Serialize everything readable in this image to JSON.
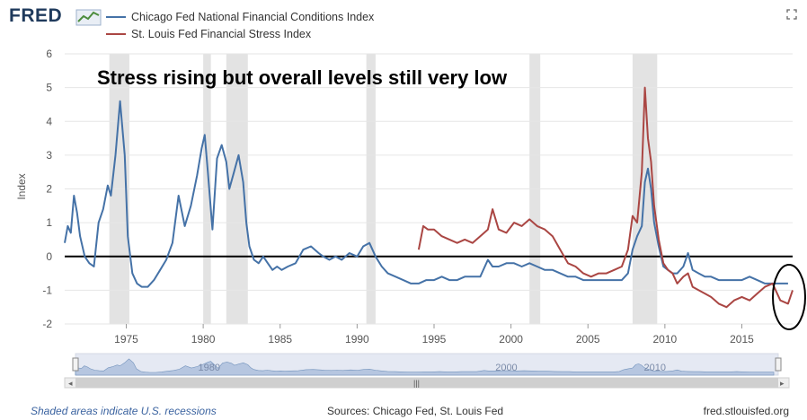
{
  "header": {
    "brand": "FRED",
    "fullscreen_icon": "expand-icon"
  },
  "legend": [
    {
      "label": "Chicago Fed National Financial Conditions Index",
      "color": "#4572a7"
    },
    {
      "label": "St. Louis Fed Financial Stress Index",
      "color": "#aa4643"
    }
  ],
  "annotation": "Stress rising but overall levels still very low",
  "footer": {
    "left": "Shaded areas indicate U.S. recessions",
    "middle": "Sources: Chicago Fed, St. Louis Fed",
    "right": "fred.stlouisfed.org"
  },
  "navigator": {
    "labels": [
      "1980",
      "2000",
      "2010"
    ]
  },
  "chart_data": {
    "type": "line",
    "title": "Stress rising but overall levels still very low",
    "xlabel": "",
    "ylabel": "Index",
    "xlim": [
      1971.0,
      2018.3
    ],
    "ylim": [
      -2,
      6
    ],
    "yticks": [
      -2,
      -1,
      0,
      1,
      2,
      3,
      4,
      5,
      6
    ],
    "xticks": [
      1975,
      1980,
      1985,
      1990,
      1995,
      2000,
      2005,
      2010,
      2015
    ],
    "recessions": [
      [
        1973.9,
        1975.2
      ],
      [
        1980.0,
        1980.5
      ],
      [
        1981.5,
        1982.9
      ],
      [
        1990.6,
        1991.2
      ],
      [
        2001.2,
        2001.9
      ],
      [
        2007.9,
        2009.5
      ]
    ],
    "zero_line": 0,
    "series": [
      {
        "name": "Chicago Fed National Financial Conditions Index",
        "color": "#4572a7",
        "x": [
          1971.0,
          1971.2,
          1971.4,
          1971.6,
          1971.8,
          1972.0,
          1972.3,
          1972.6,
          1972.9,
          1973.2,
          1973.5,
          1973.8,
          1974.0,
          1974.3,
          1974.6,
          1974.9,
          1975.1,
          1975.4,
          1975.7,
          1976.0,
          1976.4,
          1976.8,
          1977.2,
          1977.6,
          1978.0,
          1978.4,
          1978.8,
          1979.2,
          1979.6,
          1979.9,
          1980.1,
          1980.3,
          1980.6,
          1980.9,
          1981.2,
          1981.5,
          1981.7,
          1982.0,
          1982.3,
          1982.6,
          1982.8,
          1983.0,
          1983.3,
          1983.6,
          1983.9,
          1984.2,
          1984.5,
          1984.8,
          1985.1,
          1985.5,
          1986.0,
          1986.5,
          1987.0,
          1987.5,
          1987.8,
          1988.2,
          1988.6,
          1989.0,
          1989.5,
          1990.0,
          1990.4,
          1990.8,
          1991.2,
          1991.6,
          1992.0,
          1992.5,
          1993.0,
          1993.5,
          1994.0,
          1994.5,
          1995.0,
          1995.5,
          1996.0,
          1996.5,
          1997.0,
          1997.5,
          1998.0,
          1998.5,
          1998.8,
          1999.2,
          1999.7,
          2000.2,
          2000.7,
          2001.2,
          2001.7,
          2002.2,
          2002.7,
          2003.2,
          2003.7,
          2004.2,
          2004.7,
          2005.2,
          2005.7,
          2006.2,
          2006.7,
          2007.2,
          2007.6,
          2007.9,
          2008.2,
          2008.5,
          2008.7,
          2008.9,
          2009.1,
          2009.3,
          2009.6,
          2009.9,
          2010.2,
          2010.5,
          2010.8,
          2011.2,
          2011.5,
          2011.8,
          2012.2,
          2012.6,
          2013.0,
          2013.5,
          2014.0,
          2014.5,
          2015.0,
          2015.5,
          2016.0,
          2016.5,
          2017.0,
          2017.5,
          2018.0
        ],
        "y": [
          0.4,
          0.9,
          0.7,
          1.8,
          1.3,
          0.6,
          0.0,
          -0.2,
          -0.3,
          1.0,
          1.4,
          2.1,
          1.8,
          3.0,
          4.6,
          3.0,
          0.6,
          -0.5,
          -0.8,
          -0.9,
          -0.9,
          -0.7,
          -0.4,
          -0.1,
          0.4,
          1.8,
          0.9,
          1.5,
          2.4,
          3.2,
          3.6,
          2.5,
          0.8,
          2.9,
          3.3,
          2.8,
          2.0,
          2.5,
          3.0,
          2.2,
          1.0,
          0.3,
          -0.1,
          -0.2,
          0.0,
          -0.2,
          -0.4,
          -0.3,
          -0.4,
          -0.3,
          -0.2,
          0.2,
          0.3,
          0.1,
          0.0,
          -0.1,
          0.0,
          -0.1,
          0.1,
          0.0,
          0.3,
          0.4,
          0.0,
          -0.3,
          -0.5,
          -0.6,
          -0.7,
          -0.8,
          -0.8,
          -0.7,
          -0.7,
          -0.6,
          -0.7,
          -0.7,
          -0.6,
          -0.6,
          -0.6,
          -0.1,
          -0.3,
          -0.3,
          -0.2,
          -0.2,
          -0.3,
          -0.2,
          -0.3,
          -0.4,
          -0.4,
          -0.5,
          -0.6,
          -0.6,
          -0.7,
          -0.7,
          -0.7,
          -0.7,
          -0.7,
          -0.7,
          -0.5,
          0.2,
          0.6,
          0.9,
          2.2,
          2.6,
          2.0,
          1.0,
          0.3,
          -0.3,
          -0.4,
          -0.5,
          -0.5,
          -0.3,
          0.1,
          -0.4,
          -0.5,
          -0.6,
          -0.6,
          -0.7,
          -0.7,
          -0.7,
          -0.7,
          -0.6,
          -0.7,
          -0.8,
          -0.8,
          -0.8,
          -0.8
        ]
      },
      {
        "name": "St. Louis Fed Financial Stress Index",
        "color": "#aa4643",
        "x": [
          1994.0,
          1994.3,
          1994.6,
          1995.0,
          1995.5,
          1996.0,
          1996.5,
          1997.0,
          1997.5,
          1998.0,
          1998.5,
          1998.8,
          1999.2,
          1999.7,
          2000.2,
          2000.7,
          2001.2,
          2001.7,
          2002.2,
          2002.7,
          2003.2,
          2003.7,
          2004.2,
          2004.7,
          2005.2,
          2005.7,
          2006.2,
          2006.7,
          2007.2,
          2007.6,
          2007.9,
          2008.2,
          2008.5,
          2008.7,
          2008.9,
          2009.1,
          2009.3,
          2009.6,
          2009.9,
          2010.2,
          2010.5,
          2010.8,
          2011.2,
          2011.5,
          2011.8,
          2012.2,
          2012.6,
          2013.0,
          2013.5,
          2014.0,
          2014.5,
          2015.0,
          2015.5,
          2016.0,
          2016.5,
          2017.0,
          2017.5,
          2018.0,
          2018.3
        ],
        "y": [
          0.2,
          0.9,
          0.8,
          0.8,
          0.6,
          0.5,
          0.4,
          0.5,
          0.4,
          0.6,
          0.8,
          1.4,
          0.8,
          0.7,
          1.0,
          0.9,
          1.1,
          0.9,
          0.8,
          0.6,
          0.2,
          -0.2,
          -0.3,
          -0.5,
          -0.6,
          -0.5,
          -0.5,
          -0.4,
          -0.3,
          0.2,
          1.2,
          1.0,
          2.5,
          5.0,
          3.5,
          2.8,
          1.5,
          0.5,
          -0.2,
          -0.4,
          -0.5,
          -0.8,
          -0.6,
          -0.5,
          -0.9,
          -1.0,
          -1.1,
          -1.2,
          -1.4,
          -1.5,
          -1.3,
          -1.2,
          -1.3,
          -1.1,
          -0.9,
          -0.8,
          -1.3,
          -1.4,
          -1.0
        ]
      }
    ]
  }
}
